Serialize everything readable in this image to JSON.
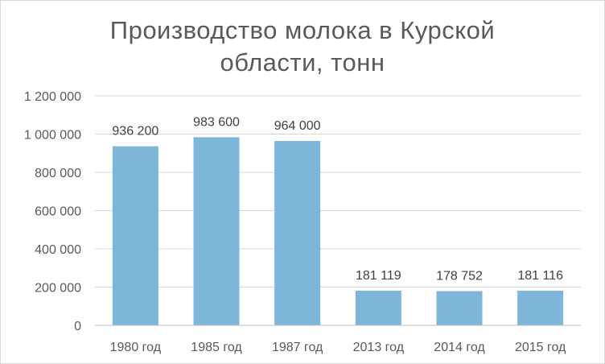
{
  "chart_data": {
    "type": "bar",
    "title_lines": [
      "Производство молока в Курской",
      "области, тонн"
    ],
    "categories": [
      "1980 год",
      "1985 год",
      "1987 год",
      "2013 год",
      "2014 год",
      "2015 год"
    ],
    "values": [
      936200,
      983600,
      964000,
      181119,
      178752,
      181116
    ],
    "value_labels": [
      "936 200",
      "983 600",
      "964 000",
      "181 119",
      "178 752",
      "181 116"
    ],
    "y_ticks": [
      0,
      200000,
      400000,
      600000,
      800000,
      1000000,
      1200000
    ],
    "y_tick_labels": [
      "0",
      "200 000",
      "400 000",
      "600 000",
      "800 000",
      "1 000 000",
      "1 200 000"
    ],
    "ylim": [
      0,
      1200000
    ],
    "grid": true,
    "legend": "none",
    "bar_color": "#7db6d9",
    "grid_color": "#d9d9d9"
  }
}
